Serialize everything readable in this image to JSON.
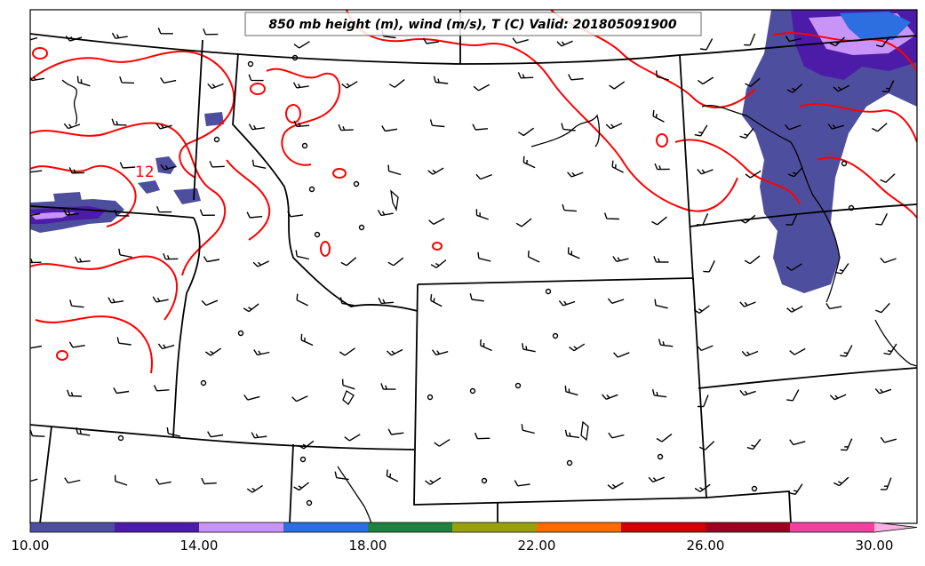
{
  "map": {
    "title": "850 mb height (m), wind (m/s), T (C) Valid: 201805091900",
    "contour_labels": [
      {
        "text": "12",
        "color": "#ff0000"
      }
    ],
    "colors": {
      "temperature_contour": "#ff0000",
      "boundaries": "#000000",
      "wind_barbs": "#000000"
    }
  },
  "colorbar": {
    "tick_labels": [
      "10.00",
      "14.00",
      "18.00",
      "22.00",
      "26.00",
      "30.00"
    ],
    "bin_colors": [
      "#4e4e9e",
      "#4c1ca8",
      "#c994f8",
      "#2d6ee0",
      "#208040",
      "#98a010",
      "#ff6a00",
      "#d40000",
      "#a00020",
      "#f040a0",
      "#f8b0e0"
    ],
    "extend": "max"
  }
}
